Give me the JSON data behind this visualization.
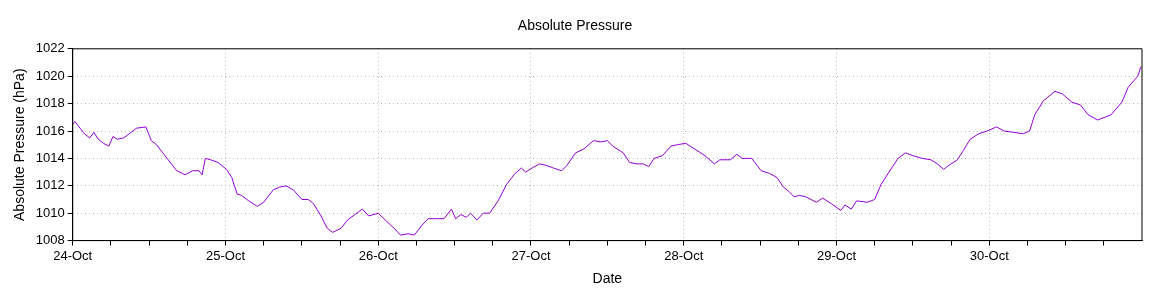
{
  "chart_data": {
    "type": "line",
    "title": "Absolute Pressure",
    "xlabel": "Date",
    "ylabel": "Absolute Pressure (hPa)",
    "xlim": [
      "--10-24",
      "--10-31"
    ],
    "xticks": [
      {
        "value": "--10-24",
        "label": "24-Oct"
      },
      {
        "value": "--10-24T06:00",
        "label": null
      },
      {
        "value": "--10-24T12:00",
        "label": null
      },
      {
        "value": "--10-24T18:00",
        "label": null
      },
      {
        "value": "--10-25",
        "label": "25-Oct"
      },
      {
        "value": "--10-25T06:00",
        "label": null
      },
      {
        "value": "--10-25T12:00",
        "label": null
      },
      {
        "value": "--10-25T18:00",
        "label": null
      },
      {
        "value": "--10-26",
        "label": "26-Oct"
      },
      {
        "value": "--10-26T06:00",
        "label": null
      },
      {
        "value": "--10-26T12:00",
        "label": null
      },
      {
        "value": "--10-26T18:00",
        "label": null
      },
      {
        "value": "--10-27",
        "label": "27-Oct"
      },
      {
        "value": "--10-27T06:00",
        "label": null
      },
      {
        "value": "--10-27T12:00",
        "label": null
      },
      {
        "value": "--10-27T18:00",
        "label": null
      },
      {
        "value": "--10-28",
        "label": "28-Oct"
      },
      {
        "value": "--10-28T06:00",
        "label": null
      },
      {
        "value": "--10-28T12:00",
        "label": null
      },
      {
        "value": "--10-28T18:00",
        "label": null
      },
      {
        "value": "--10-29",
        "label": "29-Oct"
      },
      {
        "value": "--10-29T06:00",
        "label": null
      },
      {
        "value": "--10-29T12:00",
        "label": null
      },
      {
        "value": "--10-29T18:00",
        "label": null
      },
      {
        "value": "--10-30",
        "label": "30-Oct"
      },
      {
        "value": "--10-30T06:00",
        "label": null
      },
      {
        "value": "--10-30T12:00",
        "label": null
      },
      {
        "value": "--10-30T18:00",
        "label": null
      }
    ],
    "ylim": [
      1008,
      1022
    ],
    "yticks": [
      1008,
      1010,
      1012,
      1014,
      1016,
      1018,
      1020,
      1022
    ],
    "grid": true,
    "legend": false,
    "marker": "none",
    "line_style": "solid",
    "series": [
      {
        "color": "#9400d3",
        "x": [
          "--10-24T00:00",
          "--10-24T00:20",
          "--10-24T01:00",
          "--10-24T01:50",
          "--10-24T02:40",
          "--10-24T03:20",
          "--10-24T04:00",
          "--10-24T04:50",
          "--10-24T05:40",
          "--10-24T06:20",
          "--10-24T07:00",
          "--10-24T08:00",
          "--10-24T09:10",
          "--10-24T10:00",
          "--10-24T11:30",
          "--10-24T12:20",
          "--10-24T13:10",
          "--10-24T14:10",
          "--10-24T15:00",
          "--10-24T16:20",
          "--10-24T17:40",
          "--10-24T18:50",
          "--10-24T19:50",
          "--10-24T20:20",
          "--10-24T20:50",
          "--10-24T21:40",
          "--10-24T22:50",
          "--10-25T00:10",
          "--10-25T01:00",
          "--10-25T01:50",
          "--10-25T02:30",
          "--10-25T03:40",
          "--10-25T05:00",
          "--10-25T06:00",
          "--10-25T07:30",
          "--10-25T08:30",
          "--10-25T09:30",
          "--10-25T10:40",
          "--10-25T12:00",
          "--10-25T13:00",
          "--10-25T13:50",
          "--10-25T15:00",
          "--10-25T16:00",
          "--10-25T16:50",
          "--10-25T18:10",
          "--10-25T19:10",
          "--10-25T20:20",
          "--10-25T21:30",
          "--10-25T22:30",
          "--10-26T00:00",
          "--10-26T01:20",
          "--10-26T02:30",
          "--10-26T03:30",
          "--10-26T04:40",
          "--10-26T05:40",
          "--10-26T06:50",
          "--10-26T07:50",
          "--10-26T09:10",
          "--10-26T10:20",
          "--10-26T11:30",
          "--10-26T12:10",
          "--10-26T13:00",
          "--10-26T13:50",
          "--10-26T14:30",
          "--10-26T15:30",
          "--10-26T16:30",
          "--10-26T17:30",
          "--10-26T18:50",
          "--10-26T20:10",
          "--10-26T21:30",
          "--10-26T22:30",
          "--10-26T23:10",
          "--10-27T00:10",
          "--10-27T01:20",
          "--10-27T02:20",
          "--10-27T03:30",
          "--10-27T04:50",
          "--10-27T05:40",
          "--10-27T07:00",
          "--10-27T08:20",
          "--10-27T09:50",
          "--10-27T11:00",
          "--10-27T12:00",
          "--10-27T12:50",
          "--10-27T14:30",
          "--10-27T15:30",
          "--10-27T16:40",
          "--10-27T17:40",
          "--10-27T18:30",
          "--10-27T19:20",
          "--10-27T20:40",
          "--10-27T22:00",
          "--10-27T23:00",
          "--10-28T00:20",
          "--10-28T01:40",
          "--10-28T03:20",
          "--10-28T04:50",
          "--10-28T05:40",
          "--10-28T07:20",
          "--10-28T08:20",
          "--10-28T09:10",
          "--10-28T10:40",
          "--10-28T12:10",
          "--10-28T13:30",
          "--10-28T14:40",
          "--10-28T15:40",
          "--10-28T16:30",
          "--10-28T17:20",
          "--10-28T18:10",
          "--10-28T19:10",
          "--10-28T20:50",
          "--10-28T21:50",
          "--10-28T23:10",
          "--10-29T00:40",
          "--10-29T01:20",
          "--10-29T02:20",
          "--10-29T03:10",
          "--10-29T04:50",
          "--10-29T06:00",
          "--10-29T07:00",
          "--10-29T08:40",
          "--10-29T09:40",
          "--10-29T10:50",
          "--10-29T12:00",
          "--10-29T13:30",
          "--10-29T14:50",
          "--10-29T15:50",
          "--10-29T16:50",
          "--10-29T17:40",
          "--10-29T19:00",
          "--10-29T19:50",
          "--10-29T21:00",
          "--10-29T22:20",
          "--10-29T23:40",
          "--10-30T01:10",
          "--10-30T02:20",
          "--10-30T03:50",
          "--10-30T05:20",
          "--10-30T06:20",
          "--10-30T07:10",
          "--10-30T08:30",
          "--10-30T10:20",
          "--10-30T11:30",
          "--10-30T13:00",
          "--10-30T14:20",
          "--10-30T15:30",
          "--10-30T17:00",
          "--10-30T18:10",
          "--10-30T19:10",
          "--10-30T20:50",
          "--10-30T21:50",
          "--10-30T23:20",
          "--10-30T23:50"
        ],
        "values": [
          1016.5,
          1016.7,
          1016.3,
          1015.8,
          1015.5,
          1015.9,
          1015.4,
          1015.1,
          1014.9,
          1015.6,
          1015.4,
          1015.5,
          1015.9,
          1016.2,
          1016.3,
          1015.3,
          1015,
          1014.4,
          1013.9,
          1013.1,
          1012.8,
          1013.1,
          1013.1,
          1012.8,
          1014,
          1013.9,
          1013.7,
          1013.2,
          1012.6,
          1011.4,
          1011.3,
          1010.9,
          1010.5,
          1010.8,
          1011.7,
          1011.9,
          1012,
          1011.7,
          1011,
          1011,
          1010.7,
          1009.8,
          1008.9,
          1008.6,
          1008.9,
          1009.5,
          1009.9,
          1010.3,
          1009.8,
          1010,
          1009.4,
          1008.9,
          1008.4,
          1008.5,
          1008.4,
          1009.1,
          1009.6,
          1009.6,
          1009.6,
          1010.3,
          1009.6,
          1009.9,
          1009.7,
          1010,
          1009.5,
          1010,
          1010,
          1010.9,
          1012.1,
          1012.9,
          1013.3,
          1013,
          1013.3,
          1013.6,
          1013.5,
          1013.3,
          1013.1,
          1013.5,
          1014.4,
          1014.7,
          1015.3,
          1015.2,
          1015.3,
          1014.9,
          1014.4,
          1013.7,
          1013.6,
          1013.6,
          1013.4,
          1014,
          1014.2,
          1014.9,
          1015,
          1015.1,
          1014.7,
          1014.2,
          1013.6,
          1013.9,
          1013.9,
          1014.3,
          1014,
          1014,
          1013.1,
          1012.9,
          1012.6,
          1011.9,
          1011.6,
          1011.2,
          1011.3,
          1011.2,
          1010.8,
          1011.1,
          1010.7,
          1010.2,
          1010.6,
          1010.3,
          1010.9,
          1010.8,
          1011,
          1012.1,
          1013.3,
          1014,
          1014.4,
          1014.2,
          1014,
          1013.9,
          1013.6,
          1013.2,
          1013.5,
          1013.9,
          1014.5,
          1015.4,
          1015.8,
          1016,
          1016.3,
          1016,
          1015.9,
          1015.8,
          1016,
          1017.2,
          1018.2,
          1018.9,
          1018.7,
          1018.1,
          1017.9,
          1017.2,
          1016.8,
          1017,
          1017.2,
          1018.1,
          1019.2,
          1020,
          1020.7
        ]
      }
    ]
  }
}
